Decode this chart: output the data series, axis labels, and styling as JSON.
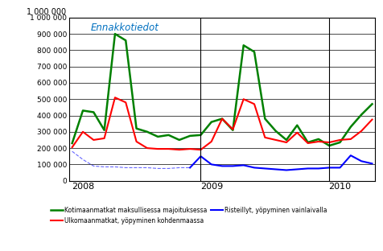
{
  "title": "Ennakkotiedot",
  "title_color": "#0070C0",
  "title_style": "italic",
  "ylim": [
    0,
    1000000
  ],
  "yticks": [
    0,
    100000,
    200000,
    300000,
    400000,
    500000,
    600000,
    700000,
    800000,
    900000,
    1000000
  ],
  "ytick_labels": [
    "0",
    "100 000",
    "200 000",
    "300 000",
    "400 000",
    "500 000",
    "600 000",
    "700 000",
    "800 000",
    "900 000",
    "1 000 000"
  ],
  "green_label": "Kotimaanmatkat maksullisessa majoituksessa",
  "red_label": "Ulkomaanmatkat, yöpyminen kohdenmaassa",
  "blue_label": "Risteillyt, yöpyminen vainlaivalla",
  "green_color": "#008000",
  "red_color": "#FF0000",
  "blue_color": "#0000FF",
  "green_data": [
    230000,
    430000,
    420000,
    310000,
    900000,
    860000,
    320000,
    300000,
    270000,
    280000,
    250000,
    275000,
    280000,
    360000,
    380000,
    310000,
    830000,
    790000,
    380000,
    305000,
    250000,
    340000,
    235000,
    255000,
    215000,
    235000,
    330000,
    405000,
    470000
  ],
  "red_data": [
    205000,
    300000,
    250000,
    260000,
    510000,
    480000,
    240000,
    200000,
    195000,
    195000,
    190000,
    195000,
    190000,
    240000,
    380000,
    315000,
    500000,
    470000,
    265000,
    250000,
    235000,
    295000,
    230000,
    240000,
    235000,
    250000,
    255000,
    305000,
    375000
  ],
  "blue_data": [
    180000,
    130000,
    90000,
    85000,
    85000,
    80000,
    80000,
    80000,
    75000,
    75000,
    80000,
    80000,
    150000,
    100000,
    90000,
    90000,
    95000,
    80000,
    75000,
    70000,
    65000,
    70000,
    75000,
    75000,
    80000,
    80000,
    155000,
    120000,
    105000
  ],
  "n_points": 29,
  "xtick_positions": [
    1,
    13,
    25
  ],
  "xtick_labels": [
    "2008",
    "2009",
    "2010"
  ],
  "vline_positions": [
    12,
    24
  ],
  "background_color": "#FFFFFF",
  "grid_color": "#808080",
  "ylabel_text": "1 000 000"
}
